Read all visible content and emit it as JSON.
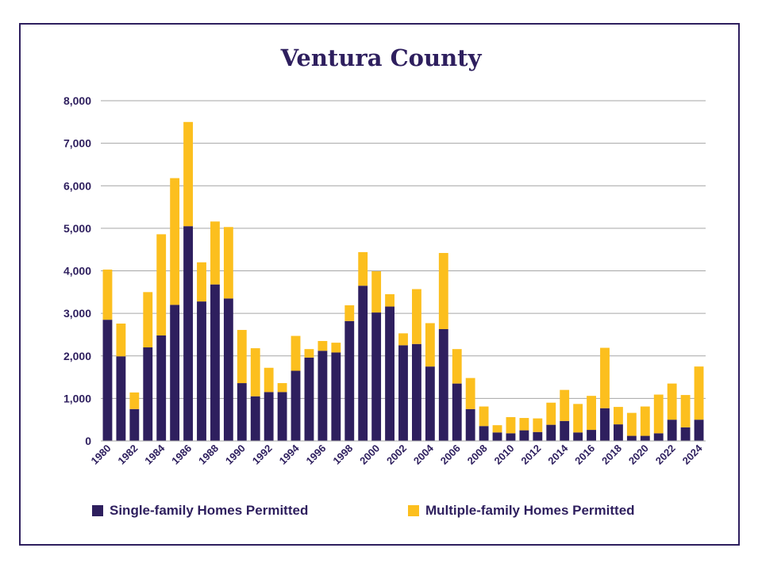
{
  "chart_data": {
    "type": "bar",
    "stacked": true,
    "title": "Ventura County",
    "xlabel": "",
    "ylabel": "",
    "ylim": [
      0,
      8000
    ],
    "yticks": [
      "0",
      "1,000",
      "2,000",
      "3,000",
      "4,000",
      "5,000",
      "6,000",
      "7,000",
      "8,000"
    ],
    "grid": true,
    "legend_position": "bottom",
    "categories": [
      1980,
      1981,
      1982,
      1983,
      1984,
      1985,
      1986,
      1987,
      1988,
      1989,
      1990,
      1991,
      1992,
      1993,
      1994,
      1995,
      1996,
      1997,
      1998,
      1999,
      2000,
      2001,
      2002,
      2003,
      2004,
      2005,
      2006,
      2007,
      2008,
      2009,
      2010,
      2011,
      2012,
      2013,
      2014,
      2015,
      2016,
      2017,
      2018,
      2019,
      2020,
      2021,
      2022,
      2023,
      2024
    ],
    "xtick_labels": [
      "1980",
      "1982",
      "1984",
      "1986",
      "1988",
      "1990",
      "1992",
      "1994",
      "1996",
      "1998",
      "2000",
      "2002",
      "2004",
      "2006",
      "2008",
      "2010",
      "2012",
      "2014",
      "2016",
      "2018",
      "2020",
      "2022",
      "2024"
    ],
    "series": [
      {
        "name": "Single-family Homes Permitted",
        "color": "#2e1f5e",
        "values": [
          2850,
          1990,
          750,
          2200,
          2480,
          3200,
          5050,
          3280,
          3680,
          3350,
          1360,
          1050,
          1150,
          1150,
          1650,
          1960,
          2120,
          2080,
          2820,
          3650,
          3020,
          3160,
          2250,
          2280,
          1750,
          2630,
          1350,
          750,
          350,
          200,
          180,
          250,
          210,
          380,
          470,
          200,
          260,
          770,
          390,
          120,
          120,
          180,
          500,
          320,
          500
        ],
        "color_name": "dark purple"
      },
      {
        "name": "Multiple-family Homes Permitted",
        "color": "#fcbf1e",
        "values": [
          1180,
          770,
          390,
          1300,
          2380,
          2980,
          2450,
          920,
          1480,
          1680,
          1250,
          1130,
          570,
          210,
          820,
          200,
          230,
          230,
          370,
          790,
          970,
          290,
          280,
          1290,
          1020,
          1790,
          810,
          730,
          460,
          170,
          380,
          290,
          320,
          520,
          730,
          670,
          800,
          1420,
          410,
          540,
          690,
          910,
          850,
          760,
          1250
        ]
      }
    ]
  }
}
